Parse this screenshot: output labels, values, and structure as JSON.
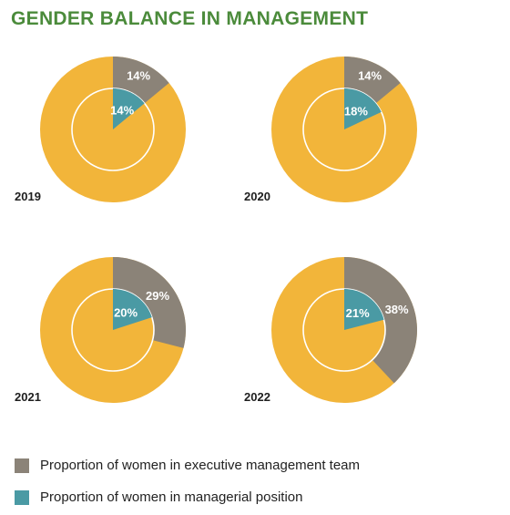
{
  "title": "GENDER BALANCE IN MANAGEMENT",
  "colors": {
    "background": "#f2b53a",
    "executive": "#8b8378",
    "managerial": "#4a9aa4",
    "title": "#4b8b3b",
    "divider": "#ffffff"
  },
  "legend": [
    {
      "label": "Proportion of women in executive management team",
      "color_key": "executive"
    },
    {
      "label": "Proportion of women in managerial position",
      "color_key": "managerial"
    }
  ],
  "chart_data": {
    "type": "pie",
    "unit": "%",
    "series": [
      {
        "name": "Proportion of women in executive management team",
        "values": [
          14,
          14,
          29,
          38
        ]
      },
      {
        "name": "Proportion of women in managerial position",
        "values": [
          14,
          18,
          20,
          21
        ]
      }
    ],
    "categories": [
      "2019",
      "2020",
      "2021",
      "2022"
    ],
    "charts": [
      {
        "year": "2019",
        "outer_value": 14,
        "outer_label": "14%",
        "inner_value": 14,
        "inner_label": "14%"
      },
      {
        "year": "2020",
        "outer_value": 14,
        "outer_label": "14%",
        "inner_value": 18,
        "inner_label": "18%"
      },
      {
        "year": "2021",
        "outer_value": 29,
        "outer_label": "29%",
        "inner_value": 20,
        "inner_label": "20%"
      },
      {
        "year": "2022",
        "outer_value": 38,
        "outer_label": "38%",
        "inner_value": 21,
        "inner_label": "21%"
      }
    ],
    "legend_position": "bottom-left"
  }
}
